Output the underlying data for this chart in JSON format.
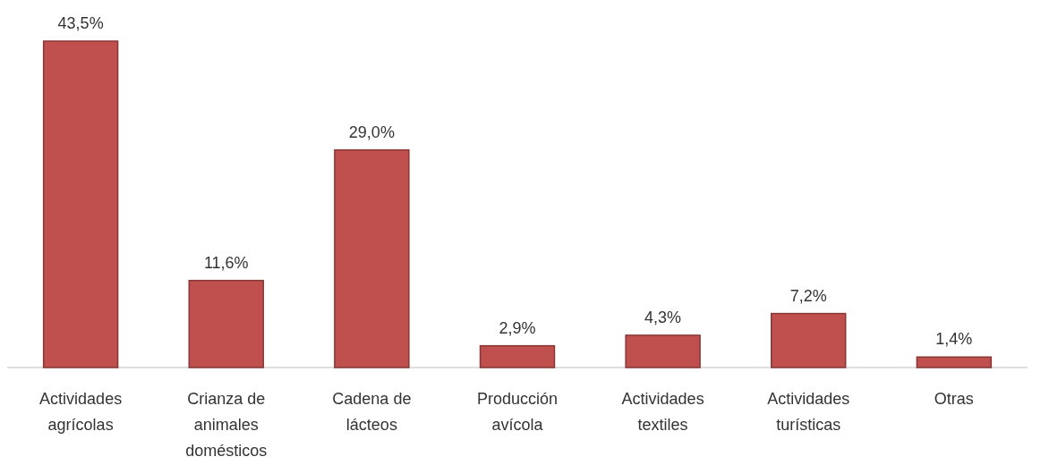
{
  "chart_data": {
    "type": "bar",
    "categories": [
      "Actividades agrícolas",
      "Crianza de animales domésticos",
      "Cadena de lácteos",
      "Producción avícola",
      "Actividades textiles",
      "Actividades turísticas",
      "Otras"
    ],
    "values": [
      43.5,
      11.6,
      29.0,
      2.9,
      4.3,
      7.2,
      1.4
    ],
    "value_labels": [
      "43,5%",
      "11,6%",
      "29,0%",
      "2,9%",
      "4,3%",
      "7,2%",
      "1,4%"
    ],
    "color": "#c0504d"
  }
}
